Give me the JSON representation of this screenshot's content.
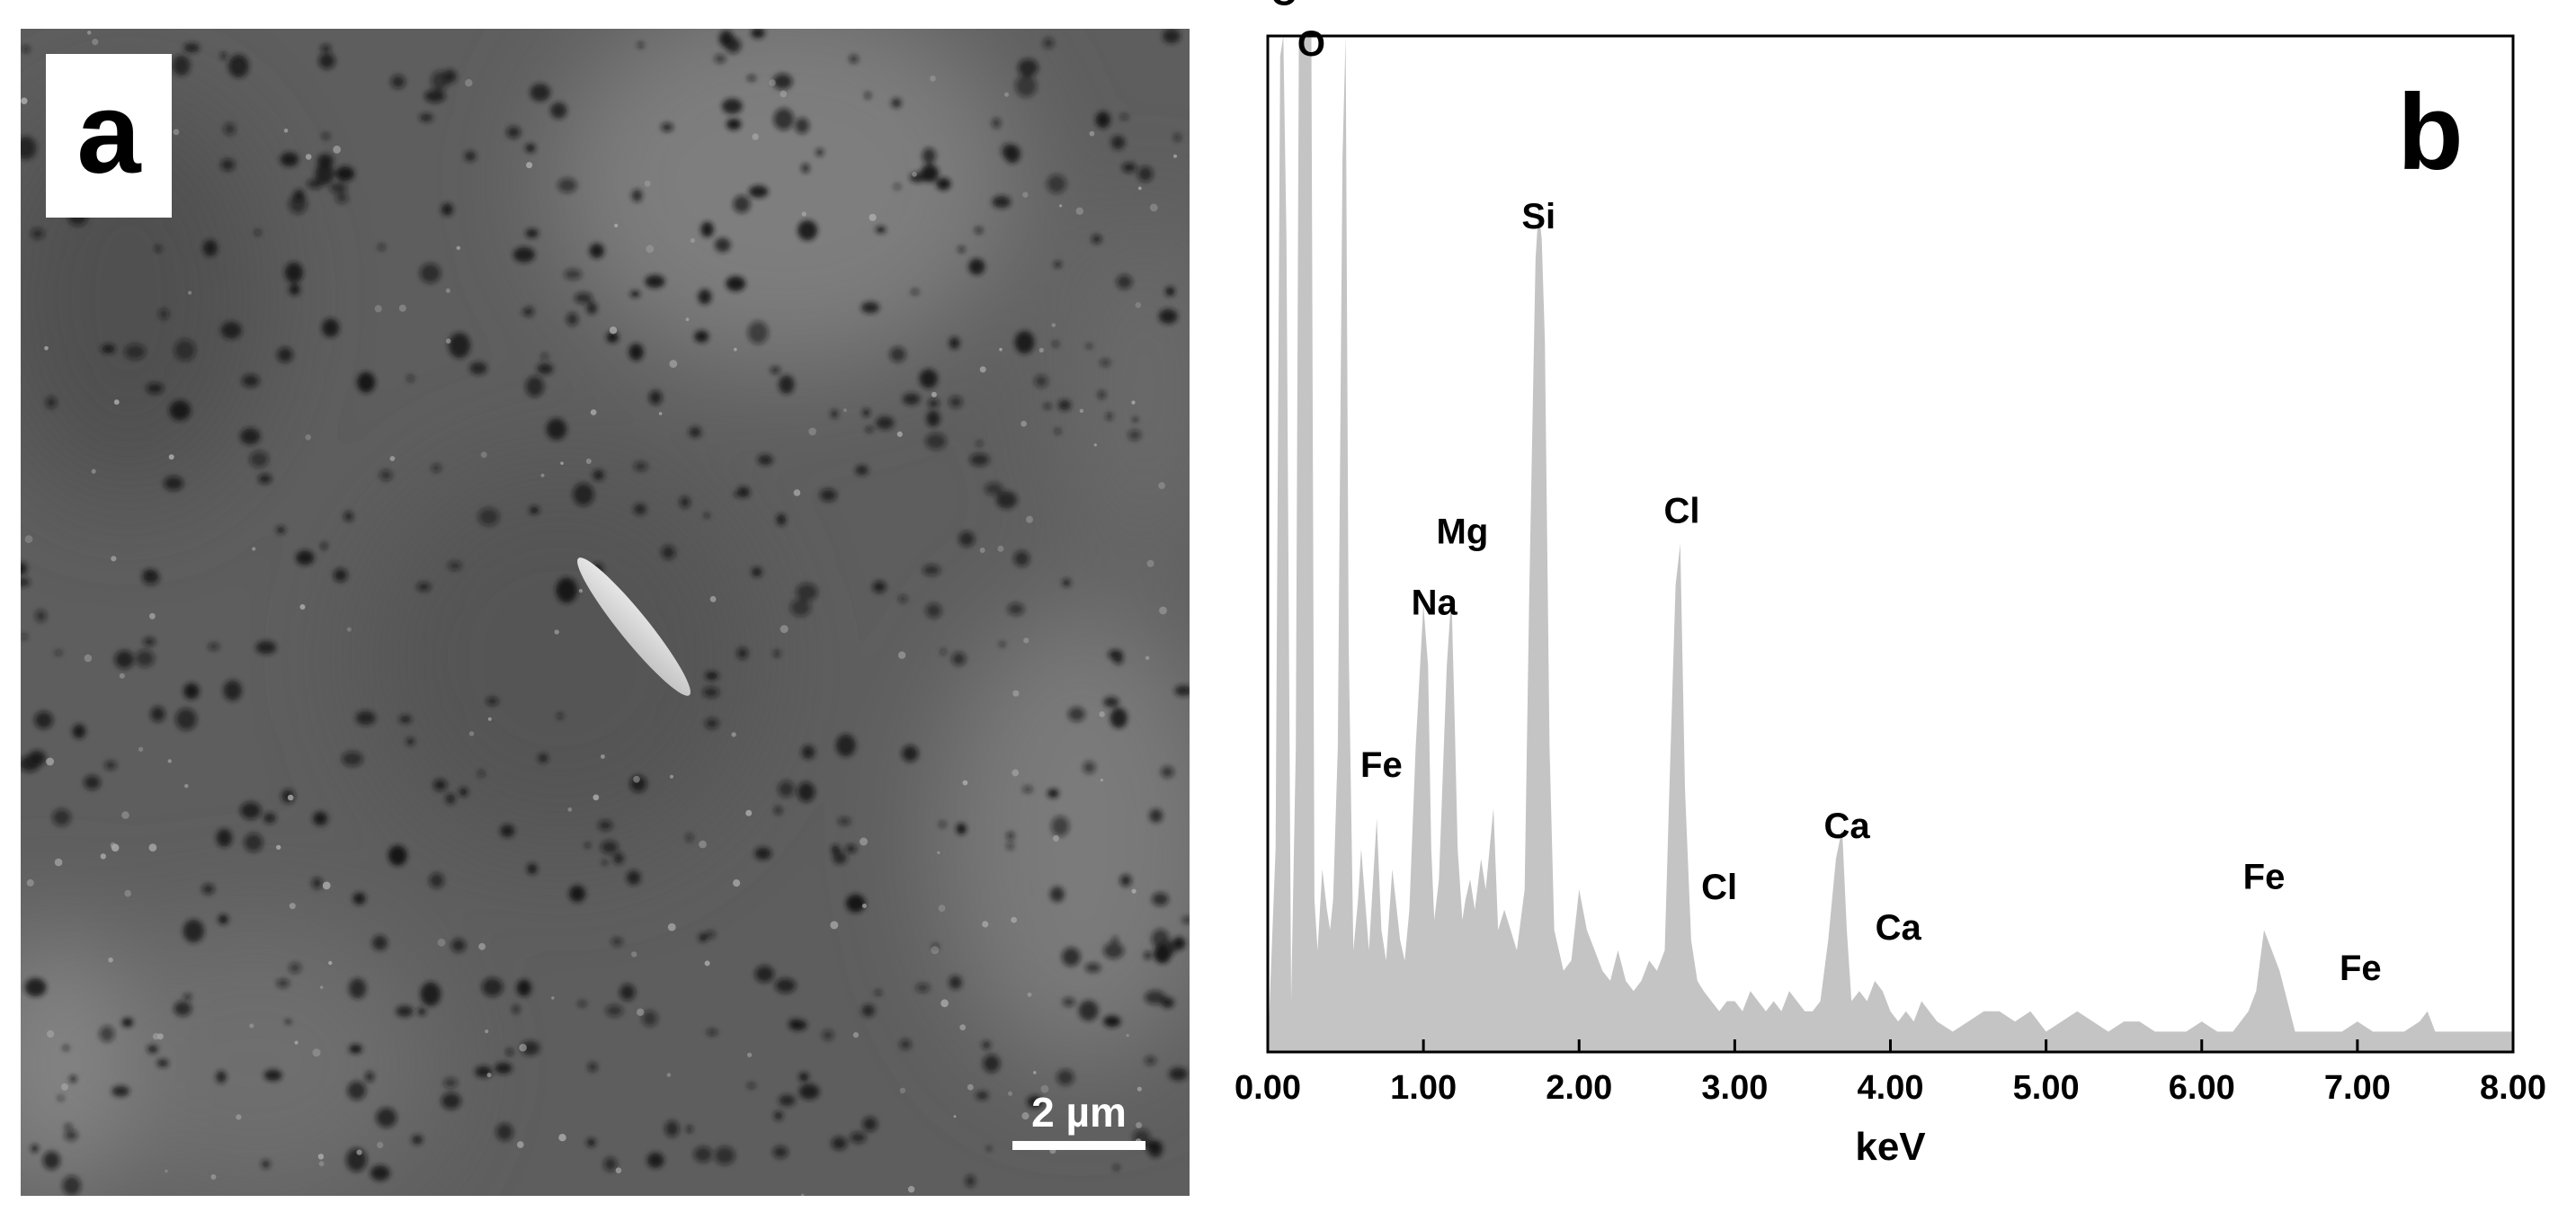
{
  "panel_a": {
    "label": "a",
    "scale_bar_label": "2 µm",
    "colors": {
      "background": "#5e5e5e",
      "particles": "#151515",
      "rod": "#d4d4d4",
      "label_bg": "#ffffff"
    }
  },
  "chart_data": {
    "type": "area",
    "panel_label": "b",
    "xlabel": "keV",
    "ylabel": "",
    "title": "",
    "xlim": [
      0,
      8
    ],
    "ylim": [
      0,
      1
    ],
    "grid": false,
    "x_tick_labels": [
      "0.00",
      "1.00",
      "2.00",
      "3.00",
      "4.00",
      "5.00",
      "6.00",
      "7.00",
      "8.00"
    ],
    "fill_color": "#c4c4c4",
    "series": [
      {
        "x": [
          0.0,
          0.05,
          0.08,
          0.1,
          0.12,
          0.15,
          0.18,
          0.2,
          0.22,
          0.25,
          0.28,
          0.3,
          0.32,
          0.35,
          0.38,
          0.4,
          0.42,
          0.45,
          0.48,
          0.5,
          0.52,
          0.55,
          0.58,
          0.6,
          0.65,
          0.7,
          0.73,
          0.76,
          0.8,
          0.85,
          0.88,
          0.91,
          0.95,
          1.0,
          1.03,
          1.05,
          1.07,
          1.1,
          1.15,
          1.18,
          1.2,
          1.22,
          1.25,
          1.27,
          1.3,
          1.33,
          1.37,
          1.4,
          1.45,
          1.48,
          1.52,
          1.56,
          1.6,
          1.65,
          1.68,
          1.72,
          1.74,
          1.76,
          1.78,
          1.81,
          1.84,
          1.9,
          1.95,
          2.0,
          2.05,
          2.1,
          2.15,
          2.2,
          2.25,
          2.3,
          2.35,
          2.4,
          2.45,
          2.5,
          2.55,
          2.58,
          2.62,
          2.65,
          2.68,
          2.72,
          2.76,
          2.8,
          2.85,
          2.9,
          2.95,
          3.0,
          3.05,
          3.1,
          3.15,
          3.2,
          3.25,
          3.3,
          3.35,
          3.4,
          3.45,
          3.5,
          3.55,
          3.6,
          3.65,
          3.69,
          3.72,
          3.75,
          3.8,
          3.85,
          3.9,
          3.95,
          4.0,
          4.05,
          4.1,
          4.15,
          4.2,
          4.3,
          4.4,
          4.5,
          4.6,
          4.7,
          4.8,
          4.9,
          5.0,
          5.1,
          5.2,
          5.3,
          5.4,
          5.5,
          5.6,
          5.7,
          5.8,
          5.9,
          6.0,
          6.1,
          6.2,
          6.3,
          6.35,
          6.4,
          6.45,
          6.5,
          6.55,
          6.6,
          6.7,
          6.8,
          6.9,
          7.0,
          7.1,
          7.2,
          7.3,
          7.4,
          7.45,
          7.5,
          7.6,
          7.7,
          7.8,
          7.9,
          8.0
        ],
        "y": [
          0.0,
          0.2,
          0.98,
          1.0,
          0.8,
          0.05,
          0.3,
          1.0,
          1.0,
          1.0,
          1.0,
          0.15,
          0.1,
          0.18,
          0.14,
          0.12,
          0.15,
          0.3,
          0.88,
          1.0,
          0.4,
          0.1,
          0.15,
          0.2,
          0.1,
          0.23,
          0.12,
          0.09,
          0.18,
          0.11,
          0.09,
          0.14,
          0.3,
          0.44,
          0.38,
          0.2,
          0.13,
          0.17,
          0.38,
          0.45,
          0.33,
          0.2,
          0.13,
          0.15,
          0.17,
          0.14,
          0.19,
          0.16,
          0.24,
          0.12,
          0.14,
          0.12,
          0.1,
          0.16,
          0.45,
          0.78,
          0.83,
          0.8,
          0.7,
          0.3,
          0.12,
          0.08,
          0.09,
          0.16,
          0.12,
          0.1,
          0.08,
          0.07,
          0.1,
          0.07,
          0.06,
          0.07,
          0.09,
          0.08,
          0.1,
          0.26,
          0.46,
          0.5,
          0.26,
          0.11,
          0.07,
          0.06,
          0.05,
          0.04,
          0.05,
          0.05,
          0.04,
          0.06,
          0.05,
          0.04,
          0.05,
          0.04,
          0.06,
          0.05,
          0.04,
          0.04,
          0.05,
          0.11,
          0.19,
          0.22,
          0.12,
          0.05,
          0.06,
          0.05,
          0.07,
          0.06,
          0.04,
          0.03,
          0.04,
          0.03,
          0.05,
          0.03,
          0.02,
          0.03,
          0.04,
          0.04,
          0.03,
          0.04,
          0.02,
          0.03,
          0.04,
          0.03,
          0.02,
          0.03,
          0.03,
          0.02,
          0.02,
          0.02,
          0.03,
          0.02,
          0.02,
          0.04,
          0.06,
          0.12,
          0.1,
          0.08,
          0.05,
          0.02,
          0.02,
          0.02,
          0.02,
          0.03,
          0.02,
          0.02,
          0.02,
          0.03,
          0.04,
          0.02,
          0.02,
          0.02,
          0.02,
          0.02,
          0.02
        ]
      }
    ],
    "annotations": [
      {
        "text": "C",
        "x": 0.1,
        "y": 1.02
      },
      {
        "text": "O",
        "x": 0.28,
        "y": 0.97
      },
      {
        "text": "Si",
        "x": 1.74,
        "y": 0.8
      },
      {
        "text": "Cl",
        "x": 2.66,
        "y": 0.51
      },
      {
        "text": "Mg",
        "x": 1.25,
        "y": 0.49
      },
      {
        "text": "Na",
        "x": 1.07,
        "y": 0.42
      },
      {
        "text": "Fe",
        "x": 0.73,
        "y": 0.26
      },
      {
        "text": "Cl",
        "x": 2.9,
        "y": 0.14
      },
      {
        "text": "Ca",
        "x": 3.72,
        "y": 0.2
      },
      {
        "text": "Ca",
        "x": 4.05,
        "y": 0.1
      },
      {
        "text": "Fe",
        "x": 6.4,
        "y": 0.15
      },
      {
        "text": "Fe",
        "x": 7.02,
        "y": 0.06
      }
    ]
  }
}
